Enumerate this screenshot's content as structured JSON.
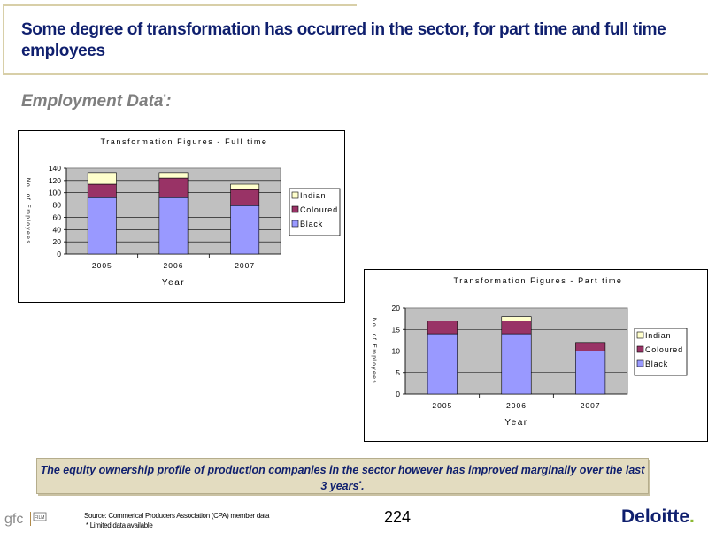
{
  "slide": {
    "title": "Some degree of transformation has occurred in the sector, for part time and full time employees",
    "subtitle": "Employment Data",
    "subtitle_marker": "*",
    "subtitle_colon": ":",
    "callout_text": "The equity ownership profile of production companies in the sector however has improved marginally over the last 3 years",
    "callout_marker": "*",
    "callout_end": ".",
    "source_line1": "Source: Commerical Producers Association (CPA) member data",
    "source_line2": "* Limited data available",
    "page_number": "224",
    "brand": "Deloitte",
    "brand_dot": ".",
    "logo_text": "gfc",
    "logo_sub": "FILM"
  },
  "colors": {
    "title": "#0f1f6e",
    "black_series": "#9999ff",
    "coloured_series": "#993366",
    "indian_series": "#ffffcc",
    "plot_bg": "#c0c0c0",
    "callout_bg": "#e3dcc0",
    "brand_green": "#8cb933"
  },
  "chart_data": [
    {
      "type": "bar",
      "stacked": true,
      "title": "Transformation Figures - Full time",
      "xlabel": "Year",
      "ylabel": "No. of Employees",
      "categories": [
        "2005",
        "2006",
        "2007"
      ],
      "ylim": [
        0,
        140
      ],
      "yticks": [
        "0",
        "20",
        "40",
        "60",
        "80",
        "100",
        "120",
        "140"
      ],
      "grid": true,
      "legend": "right",
      "series": [
        {
          "name": "Black",
          "values": [
            92,
            92,
            79
          ]
        },
        {
          "name": "Coloured",
          "values": [
            22,
            32,
            26
          ]
        },
        {
          "name": "Indian",
          "values": [
            19,
            9,
            9
          ]
        }
      ]
    },
    {
      "type": "bar",
      "stacked": true,
      "title": "Transformation Figures - Part time",
      "xlabel": "Year",
      "ylabel": "No. of Employees",
      "categories": [
        "2005",
        "2006",
        "2007"
      ],
      "ylim": [
        0,
        20
      ],
      "yticks": [
        "0",
        "5",
        "10",
        "15",
        "20"
      ],
      "grid": true,
      "legend": "right",
      "series": [
        {
          "name": "Black",
          "values": [
            14,
            14,
            10
          ]
        },
        {
          "name": "Coloured",
          "values": [
            3,
            3,
            2
          ]
        },
        {
          "name": "Indian",
          "values": [
            0,
            1,
            0
          ]
        }
      ]
    }
  ]
}
